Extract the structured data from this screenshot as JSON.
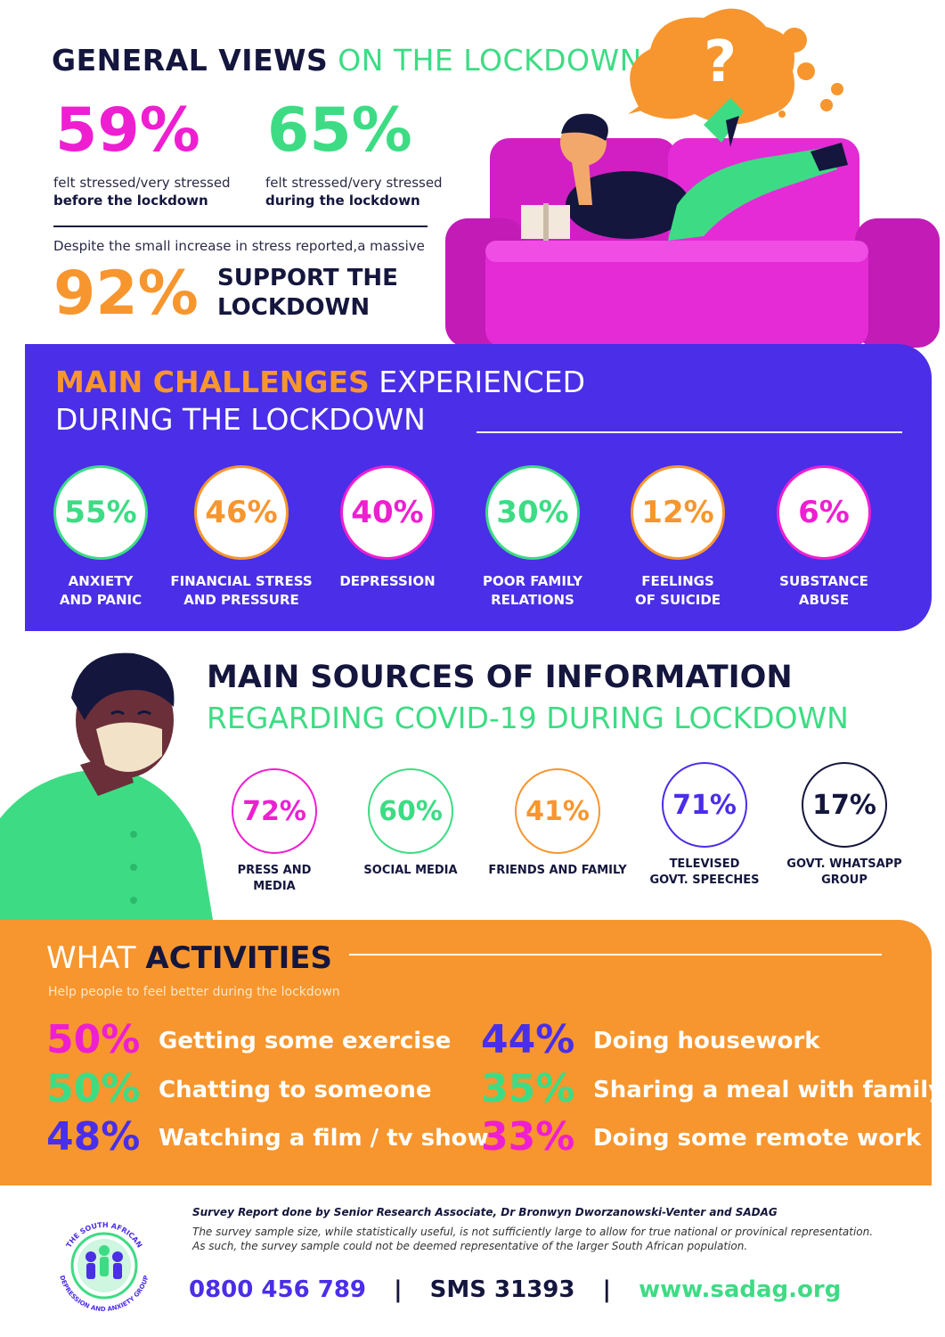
{
  "colors": {
    "navy": "#14163d",
    "green": "#3ddc84",
    "magenta": "#ee1fd1",
    "orange": "#f7962e",
    "purple": "#4a2ee8",
    "pink_sofa": "#e42bd6"
  },
  "general": {
    "title_bold": "GENERAL VIEWS",
    "title_light": "ON THE LOCKDOWN",
    "before": {
      "pct": "59%",
      "line1": "felt stressed/very stressed",
      "line2": "before the lockdown"
    },
    "during": {
      "pct": "65%",
      "line1": "felt stressed/very stressed",
      "line2": "during the lockdown"
    },
    "despite": "Despite the small increase in stress reported,a massive",
    "support": {
      "pct": "92%",
      "line1": "SUPPORT THE",
      "line2": "LOCKDOWN"
    },
    "question_mark": "?"
  },
  "challenges": {
    "title_bold": "MAIN CHALLENGES",
    "title_light1": "EXPERIENCED",
    "title_light2": "DURING THE LOCKDOWN",
    "items": [
      {
        "pct": "55%",
        "l1": "ANXIETY",
        "l2": "AND PANIC",
        "color": "#3ddc84"
      },
      {
        "pct": "46%",
        "l1": "FINANCIAL STRESS",
        "l2": "AND PRESSURE",
        "color": "#f7962e"
      },
      {
        "pct": "40%",
        "l1": "DEPRESSION",
        "l2": "",
        "color": "#ee1fd1"
      },
      {
        "pct": "30%",
        "l1": "POOR FAMILY",
        "l2": "RELATIONS",
        "color": "#3ddc84"
      },
      {
        "pct": "12%",
        "l1": "FEELINGS",
        "l2": "OF SUICIDE",
        "color": "#f7962e"
      },
      {
        "pct": "6%",
        "l1": "SUBSTANCE",
        "l2": "ABUSE",
        "color": "#ee1fd1"
      }
    ]
  },
  "sources": {
    "title_bold": "MAIN SOURCES OF INFORMATION",
    "title_light": "REGARDING COVID-19 DURING LOCKDOWN",
    "items": [
      {
        "pct": "72%",
        "l1": "PRESS AND",
        "l2": "MEDIA",
        "color": "#ee1fd1"
      },
      {
        "pct": "60%",
        "l1": "SOCIAL MEDIA",
        "l2": "",
        "color": "#3ddc84"
      },
      {
        "pct": "41%",
        "l1": "FRIENDS AND FAMILY",
        "l2": "",
        "color": "#f7962e"
      },
      {
        "pct": "71%",
        "l1": "TELEVISED",
        "l2": "GOVT. SPEECHES",
        "color": "#4a2ee8"
      },
      {
        "pct": "17%",
        "l1": "GOVT. WHATSAPP",
        "l2": "GROUP",
        "color": "#14163d"
      }
    ]
  },
  "activities": {
    "title_light": "WHAT",
    "title_bold": "ACTIVITIES",
    "subtitle": "Help people to feel better during the lockdown",
    "items": [
      {
        "pct": "50%",
        "text": "Getting some exercise",
        "color": "#ee1fd1"
      },
      {
        "pct": "50%",
        "text": "Chatting to someone",
        "color": "#3ddc84"
      },
      {
        "pct": "48%",
        "text": "Watching a film / tv show",
        "color": "#4a2ee8"
      },
      {
        "pct": "44%",
        "text": "Doing housework",
        "color": "#4a2ee8"
      },
      {
        "pct": "35%",
        "text": "Sharing a meal with family",
        "color": "#3ddc84"
      },
      {
        "pct": "33%",
        "text": "Doing some remote work",
        "color": "#ee1fd1"
      }
    ]
  },
  "footer": {
    "credit": "Survey Report done by Senior Research Associate, Dr Bronwyn Dworzanowski-Venter and SADAG",
    "disclaimer1": "The survey sample size, while statistically useful, is not sufficiently large to allow for true national or provinical representation.",
    "disclaimer2": "As such, the survey sample could not be deemed representative of the larger South African population.",
    "phone": "0800 456 789",
    "sep": "|",
    "sms": "SMS 31393",
    "web": "www.sadag.org",
    "logo_top": "THE SOUTH AFRICAN",
    "logo_bottom": "DEPRESSION AND ANXIETY GROUP"
  }
}
